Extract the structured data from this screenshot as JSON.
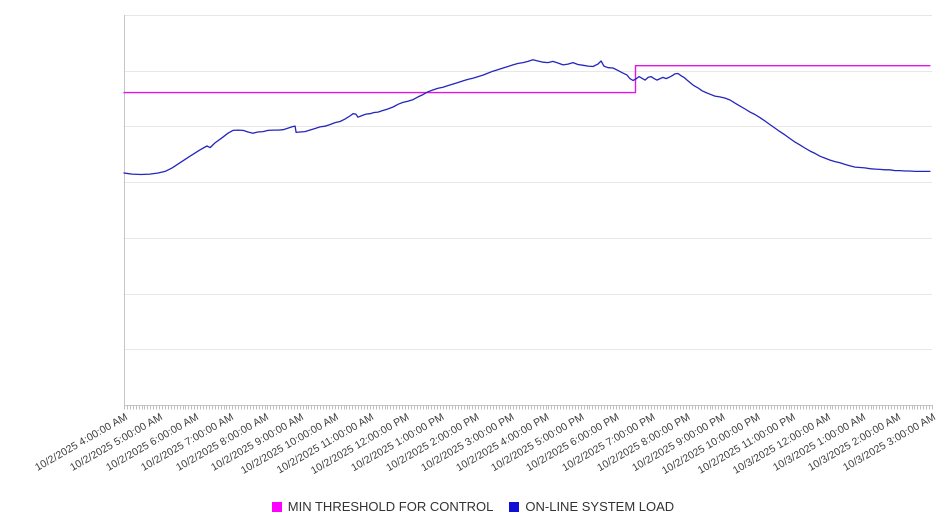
{
  "chart_data": {
    "type": "line",
    "title": "",
    "xlabel": "",
    "ylabel": "",
    "x_axis": {
      "xlim_hours": [
        0,
        23
      ],
      "tick_interval": "1 hour",
      "minor_ticks_per_hour": 12,
      "tick_labels": [
        "10/2/2025 4:00:00 AM",
        "10/2/2025 5:00:00 AM",
        "10/2/2025 6:00:00 AM",
        "10/2/2025 7:00:00 AM",
        "10/2/2025 8:00:00 AM",
        "10/2/2025 9:00:00 AM",
        "10/2/2025 10:00:00 AM",
        "10/2/2025 11:00:00 AM",
        "10/2/2025 12:00:00 PM",
        "10/2/2025 1:00:00 PM",
        "10/2/2025 2:00:00 PM",
        "10/2/2025 3:00:00 PM",
        "10/2/2025 4:00:00 PM",
        "10/2/2025 5:00:00 PM",
        "10/2/2025 6:00:00 PM",
        "10/2/2025 7:00:00 PM",
        "10/2/2025 8:00:00 PM",
        "10/2/2025 9:00:00 PM",
        "10/2/2025 10:00:00 PM",
        "10/2/2025 11:00:00 PM",
        "10/3/2025 12:00:00 AM",
        "10/3/2025 1:00:00 AM",
        "10/3/2025 2:00:00 AM",
        "10/3/2025 3:00:00 AM"
      ]
    },
    "y_axis": {
      "ylim": [
        0,
        100
      ],
      "tick_labels_shown": false,
      "gridline_divisions": 7,
      "units": "relative load (axis unlabeled, values est. % of plot height)"
    },
    "grid": "horizontal",
    "legend_position": "bottom-center",
    "series": [
      {
        "name": "MIN THRESHOLD FOR CONTROL",
        "color": "#e414e4",
        "points": [
          [
            0,
            80.1
          ],
          [
            14.56,
            80.1
          ],
          [
            14.56,
            87.0
          ],
          [
            22.94,
            87.0
          ]
        ]
      },
      {
        "name": "ON-LINE SYSTEM LOAD",
        "color": "#2525bd",
        "points": [
          [
            0,
            59.5
          ],
          [
            0.23,
            59.2
          ],
          [
            0.48,
            59.1
          ],
          [
            0.74,
            59.2
          ],
          [
            0.97,
            59.5
          ],
          [
            1.17,
            59.9
          ],
          [
            1.37,
            60.8
          ],
          [
            1.59,
            62.1
          ],
          [
            1.88,
            63.8
          ],
          [
            2.16,
            65.4
          ],
          [
            2.36,
            66.4
          ],
          [
            2.45,
            66.0
          ],
          [
            2.59,
            67.2
          ],
          [
            2.79,
            68.5
          ],
          [
            2.96,
            69.7
          ],
          [
            3.1,
            70.4
          ],
          [
            3.25,
            70.5
          ],
          [
            3.39,
            70.4
          ],
          [
            3.53,
            70.0
          ],
          [
            3.67,
            69.7
          ],
          [
            3.81,
            70.0
          ],
          [
            3.96,
            70.1
          ],
          [
            4.1,
            70.4
          ],
          [
            4.24,
            70.5
          ],
          [
            4.38,
            70.5
          ],
          [
            4.53,
            70.6
          ],
          [
            4.67,
            71.0
          ],
          [
            4.81,
            71.4
          ],
          [
            4.87,
            71.5
          ],
          [
            4.9,
            69.9
          ],
          [
            5.01,
            70.0
          ],
          [
            5.15,
            70.1
          ],
          [
            5.29,
            70.5
          ],
          [
            5.44,
            70.9
          ],
          [
            5.58,
            71.3
          ],
          [
            5.72,
            71.5
          ],
          [
            5.86,
            71.9
          ],
          [
            6.01,
            72.4
          ],
          [
            6.15,
            72.7
          ],
          [
            6.29,
            73.3
          ],
          [
            6.43,
            74.1
          ],
          [
            6.52,
            74.7
          ],
          [
            6.6,
            74.6
          ],
          [
            6.66,
            73.8
          ],
          [
            6.77,
            74.2
          ],
          [
            6.89,
            74.6
          ],
          [
            7.0,
            74.7
          ],
          [
            7.12,
            75.0
          ],
          [
            7.23,
            75.1
          ],
          [
            7.37,
            75.5
          ],
          [
            7.51,
            75.9
          ],
          [
            7.66,
            76.4
          ],
          [
            7.8,
            77.1
          ],
          [
            7.94,
            77.6
          ],
          [
            8.08,
            77.9
          ],
          [
            8.23,
            78.3
          ],
          [
            8.37,
            79.0
          ],
          [
            8.51,
            79.6
          ],
          [
            8.65,
            80.3
          ],
          [
            8.8,
            80.8
          ],
          [
            8.94,
            81.2
          ],
          [
            9.08,
            81.5
          ],
          [
            9.22,
            81.9
          ],
          [
            9.37,
            82.3
          ],
          [
            9.51,
            82.7
          ],
          [
            9.65,
            83.1
          ],
          [
            9.79,
            83.5
          ],
          [
            9.93,
            83.8
          ],
          [
            10.08,
            84.2
          ],
          [
            10.22,
            84.6
          ],
          [
            10.36,
            85.1
          ],
          [
            10.5,
            85.6
          ],
          [
            10.65,
            86.0
          ],
          [
            10.79,
            86.4
          ],
          [
            10.93,
            86.8
          ],
          [
            11.07,
            87.2
          ],
          [
            11.22,
            87.6
          ],
          [
            11.36,
            87.8
          ],
          [
            11.5,
            88.1
          ],
          [
            11.64,
            88.5
          ],
          [
            11.78,
            88.2
          ],
          [
            11.93,
            87.9
          ],
          [
            12.07,
            87.8
          ],
          [
            12.21,
            88.1
          ],
          [
            12.35,
            87.7
          ],
          [
            12.5,
            87.2
          ],
          [
            12.64,
            87.4
          ],
          [
            12.78,
            87.8
          ],
          [
            12.92,
            87.3
          ],
          [
            13.07,
            87.1
          ],
          [
            13.21,
            86.9
          ],
          [
            13.35,
            86.8
          ],
          [
            13.49,
            87.4
          ],
          [
            13.58,
            88.2
          ],
          [
            13.66,
            86.9
          ],
          [
            13.78,
            86.5
          ],
          [
            13.92,
            86.4
          ],
          [
            14.06,
            85.8
          ],
          [
            14.2,
            85.1
          ],
          [
            14.32,
            84.6
          ],
          [
            14.4,
            83.7
          ],
          [
            14.49,
            83.2
          ],
          [
            14.57,
            83.6
          ],
          [
            14.66,
            84.2
          ],
          [
            14.74,
            83.8
          ],
          [
            14.83,
            83.3
          ],
          [
            14.92,
            84.0
          ],
          [
            15.0,
            84.2
          ],
          [
            15.09,
            83.7
          ],
          [
            15.17,
            83.3
          ],
          [
            15.26,
            83.7
          ],
          [
            15.34,
            84.0
          ],
          [
            15.43,
            83.7
          ],
          [
            15.51,
            84.0
          ],
          [
            15.6,
            84.4
          ],
          [
            15.68,
            84.9
          ],
          [
            15.77,
            85.0
          ],
          [
            15.86,
            84.4
          ],
          [
            15.94,
            84.0
          ],
          [
            16.03,
            83.3
          ],
          [
            16.11,
            82.7
          ],
          [
            16.22,
            81.9
          ],
          [
            16.34,
            81.3
          ],
          [
            16.45,
            80.6
          ],
          [
            16.57,
            80.1
          ],
          [
            16.68,
            79.7
          ],
          [
            16.82,
            79.2
          ],
          [
            16.96,
            79.0
          ],
          [
            17.11,
            78.7
          ],
          [
            17.25,
            78.2
          ],
          [
            17.39,
            77.4
          ],
          [
            17.53,
            76.7
          ],
          [
            17.68,
            75.9
          ],
          [
            17.82,
            75.1
          ],
          [
            17.96,
            74.5
          ],
          [
            18.1,
            73.7
          ],
          [
            18.25,
            72.8
          ],
          [
            18.39,
            71.9
          ],
          [
            18.53,
            71.0
          ],
          [
            18.67,
            70.1
          ],
          [
            18.82,
            69.2
          ],
          [
            18.96,
            68.3
          ],
          [
            19.1,
            67.4
          ],
          [
            19.24,
            66.7
          ],
          [
            19.38,
            65.9
          ],
          [
            19.53,
            65.1
          ],
          [
            19.67,
            64.5
          ],
          [
            19.81,
            63.8
          ],
          [
            19.95,
            63.3
          ],
          [
            20.1,
            62.8
          ],
          [
            20.24,
            62.4
          ],
          [
            20.38,
            62.1
          ],
          [
            20.52,
            61.7
          ],
          [
            20.67,
            61.3
          ],
          [
            20.81,
            61.0
          ],
          [
            20.95,
            60.9
          ],
          [
            21.09,
            60.8
          ],
          [
            21.23,
            60.6
          ],
          [
            21.38,
            60.5
          ],
          [
            21.52,
            60.4
          ],
          [
            21.66,
            60.3
          ],
          [
            21.8,
            60.3
          ],
          [
            21.95,
            60.1
          ],
          [
            22.09,
            60.1
          ],
          [
            22.23,
            60.0
          ],
          [
            22.37,
            60.0
          ],
          [
            22.52,
            59.9
          ],
          [
            22.65,
            59.9
          ],
          [
            22.8,
            59.9
          ],
          [
            22.94,
            59.9
          ]
        ]
      }
    ]
  },
  "legend": {
    "items": [
      {
        "label": "MIN THRESHOLD FOR CONTROL",
        "color": "#ff00ff"
      },
      {
        "label": "ON-LINE SYSTEM LOAD",
        "color": "#0f0fd6"
      }
    ]
  },
  "colors": {
    "gridline": "#e7e7e7",
    "axis": "#c6c6c6",
    "minor_tick": "#bfbfbf",
    "x_label_text": "#3d3d3d",
    "legend_text": "#333333"
  }
}
